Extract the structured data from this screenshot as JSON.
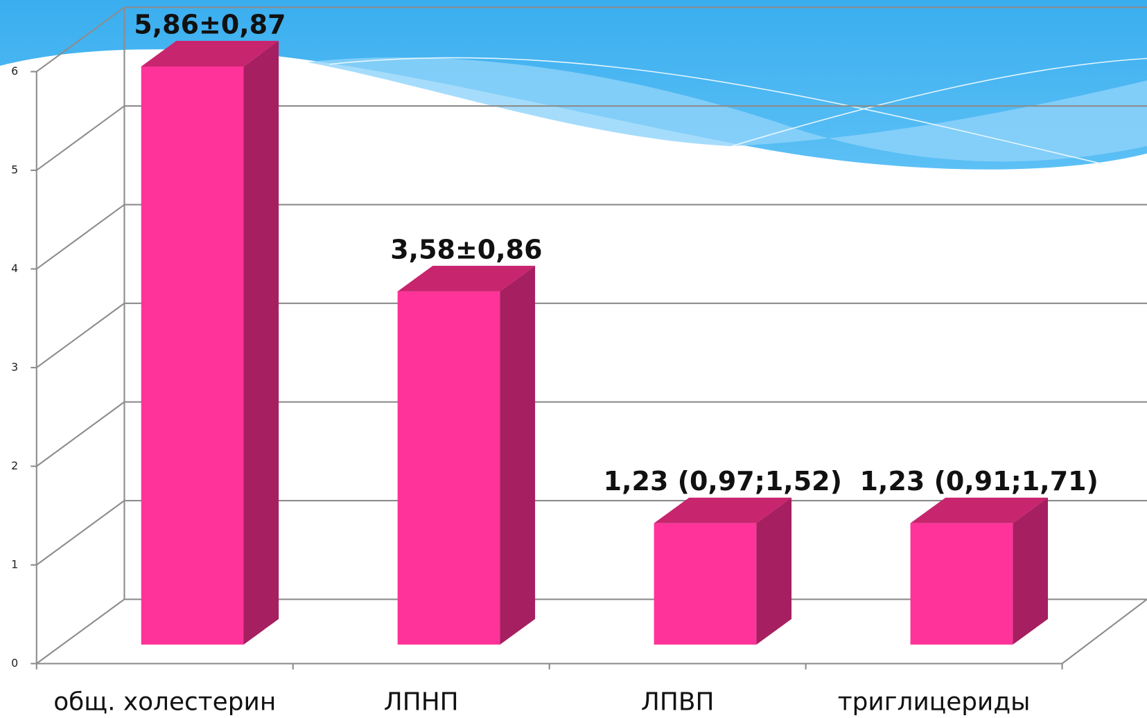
{
  "chart_data": {
    "type": "bar3d",
    "categories": [
      "общ. холестерин",
      "ЛПНП",
      "ЛПВП",
      "триглицериды"
    ],
    "values": [
      5.86,
      3.58,
      1.23,
      1.23
    ],
    "value_labels": [
      "5,86±0,87",
      "3,58±0,86",
      "1,23 (0,97;1,52)",
      "1,23 (0,91;1,71)"
    ],
    "color": "#ff3399",
    "ylim": [
      0,
      6
    ],
    "yticks": [
      0,
      1,
      2,
      3,
      4,
      5,
      6
    ],
    "grid": true
  }
}
